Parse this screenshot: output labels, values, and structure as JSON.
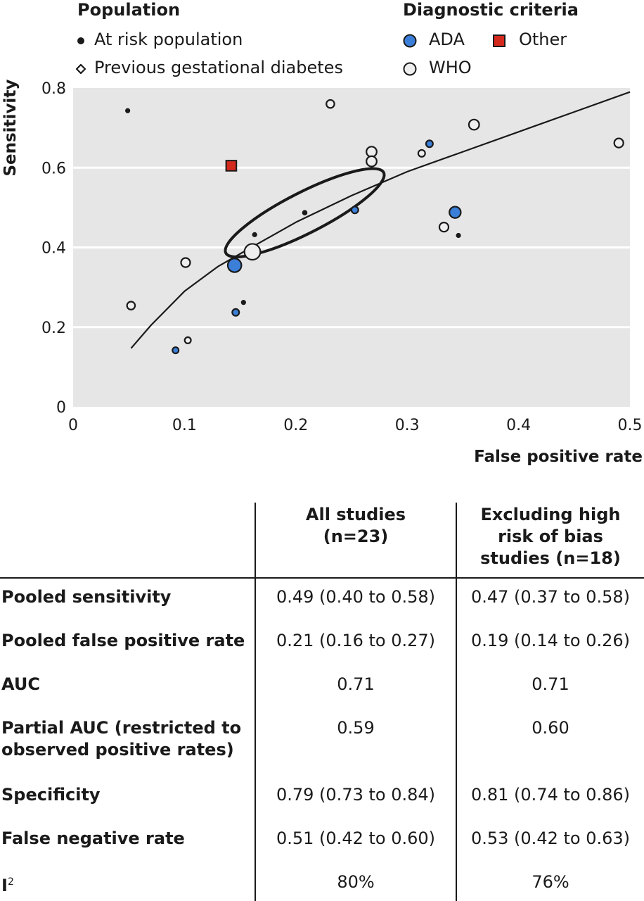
{
  "legend": {
    "population": {
      "title": "Population",
      "items": [
        {
          "label": "At risk population",
          "symbol": "small-dot"
        },
        {
          "label": "Previous gestational diabetes",
          "symbol": "diamond"
        }
      ]
    },
    "criteria": {
      "title": "Diagnostic criteria",
      "items": [
        {
          "label": "ADA",
          "symbol": "circle",
          "color": "#3b7fd9"
        },
        {
          "label": "Other",
          "symbol": "square",
          "color": "#d42a1e"
        },
        {
          "label": "WHO",
          "symbol": "circle",
          "color": "#eeeeee"
        }
      ]
    }
  },
  "chart_data": {
    "type": "scatter",
    "xlabel": "False positive rate",
    "ylabel": "Sensitivity",
    "xlim": [
      0,
      0.5
    ],
    "ylim": [
      0,
      0.8
    ],
    "x_ticks": [
      "0",
      "0.1",
      "0.2",
      "0.3",
      "0.4",
      "0.5"
    ],
    "y_ticks": [
      "0",
      "0.2",
      "0.4",
      "0.6",
      "0.8"
    ],
    "grid": "horizontal",
    "background": "#e6e6e6",
    "colors": {
      "ADA": "#3b7fd9",
      "WHO": "#eeeeee",
      "Other": "#d42a1e",
      "at_risk": "#1a1a1a"
    },
    "points": [
      {
        "x": 0.049,
        "y": 0.743,
        "criteria": "at_risk",
        "size": 1
      },
      {
        "x": 0.231,
        "y": 0.76,
        "criteria": "WHO",
        "size": 2
      },
      {
        "x": 0.142,
        "y": 0.605,
        "criteria": "Other",
        "size": 3
      },
      {
        "x": 0.268,
        "y": 0.64,
        "criteria": "WHO",
        "size": 3
      },
      {
        "x": 0.268,
        "y": 0.616,
        "criteria": "WHO",
        "size": 3
      },
      {
        "x": 0.313,
        "y": 0.636,
        "criteria": "WHO",
        "size": 1.5
      },
      {
        "x": 0.32,
        "y": 0.66,
        "criteria": "ADA",
        "size": 1.5
      },
      {
        "x": 0.36,
        "y": 0.708,
        "criteria": "WHO",
        "size": 3
      },
      {
        "x": 0.49,
        "y": 0.662,
        "criteria": "WHO",
        "size": 2.5
      },
      {
        "x": 0.208,
        "y": 0.487,
        "criteria": "at_risk",
        "size": 1.2
      },
      {
        "x": 0.253,
        "y": 0.494,
        "criteria": "ADA",
        "size": 1.5
      },
      {
        "x": 0.163,
        "y": 0.432,
        "criteria": "at_risk",
        "size": 1
      },
      {
        "x": 0.343,
        "y": 0.488,
        "criteria": "ADA",
        "size": 3.5
      },
      {
        "x": 0.333,
        "y": 0.451,
        "criteria": "WHO",
        "size": 2.5
      },
      {
        "x": 0.346,
        "y": 0.43,
        "criteria": "at_risk",
        "size": 1
      },
      {
        "x": 0.161,
        "y": 0.389,
        "criteria": "WHO",
        "size": 5.5
      },
      {
        "x": 0.145,
        "y": 0.355,
        "criteria": "ADA",
        "size": 4.5
      },
      {
        "x": 0.101,
        "y": 0.362,
        "criteria": "WHO",
        "size": 2.5
      },
      {
        "x": 0.052,
        "y": 0.254,
        "criteria": "WHO",
        "size": 2
      },
      {
        "x": 0.146,
        "y": 0.237,
        "criteria": "ADA",
        "size": 1.5
      },
      {
        "x": 0.153,
        "y": 0.262,
        "criteria": "at_risk",
        "size": 1
      },
      {
        "x": 0.103,
        "y": 0.167,
        "criteria": "WHO",
        "size": 1.2
      },
      {
        "x": 0.092,
        "y": 0.142,
        "criteria": "ADA",
        "size": 1.2
      }
    ],
    "sroc_curve": {
      "x": [
        0.052,
        0.07,
        0.1,
        0.13,
        0.16,
        0.2,
        0.25,
        0.3,
        0.35,
        0.4,
        0.45,
        0.5
      ],
      "y": [
        0.147,
        0.205,
        0.29,
        0.352,
        0.4,
        0.463,
        0.53,
        0.59,
        0.64,
        0.69,
        0.74,
        0.79
      ]
    },
    "confidence_ellipse": {
      "center_x": 0.208,
      "center_y": 0.487,
      "x_extent": [
        0.145,
        0.287
      ],
      "y_extent": [
        0.42,
        0.585
      ]
    }
  },
  "table": {
    "headers": [
      "All studies (n=23)",
      "Excluding high risk of bias studies (n=18)"
    ],
    "header_lines": [
      [
        "All studies",
        "(n=23)"
      ],
      [
        "Excluding high",
        "risk of bias",
        "studies (n=18)"
      ]
    ],
    "rows": [
      {
        "label_lines": [
          "Pooled sensitivity"
        ],
        "all": "0.49 (0.40 to 0.58)",
        "excl": "0.47 (0.37 to 0.58)"
      },
      {
        "label_lines": [
          "Pooled false positive rate"
        ],
        "all": "0.21 (0.16 to 0.27)",
        "excl": "0.19 (0.14 to 0.26)"
      },
      {
        "label_lines": [
          "AUC"
        ],
        "all": "0.71",
        "excl": "0.71"
      },
      {
        "label_lines": [
          "Partial AUC (restricted to",
          "observed positive rates)"
        ],
        "all": "0.59",
        "excl": "0.60"
      },
      {
        "label_lines": [
          "Specificity"
        ],
        "all": "0.79 (0.73 to 0.84)",
        "excl": "0.81 (0.74 to 0.86)"
      },
      {
        "label_lines": [
          "False negative rate"
        ],
        "all": "0.51 (0.42 to 0.60)",
        "excl": "0.53 (0.42 to 0.63)"
      },
      {
        "label_lines": [
          "I",
          "2"
        ],
        "all": "80%",
        "excl": "76%"
      }
    ]
  }
}
